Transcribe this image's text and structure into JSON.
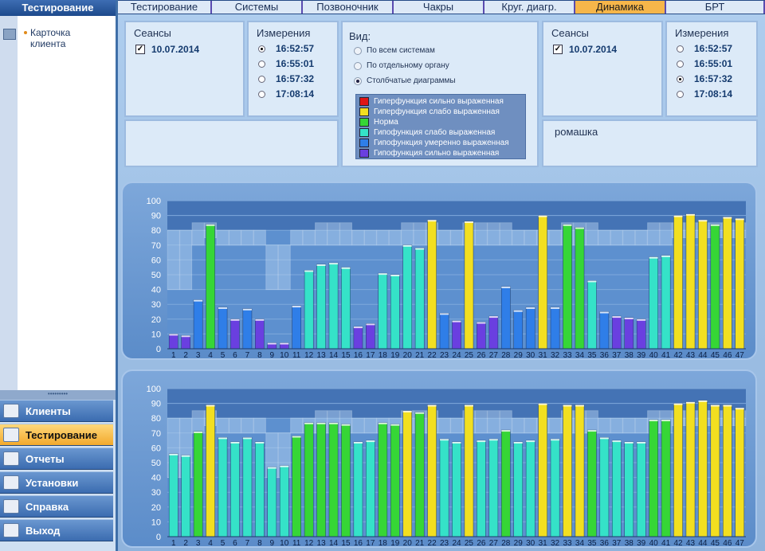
{
  "left": {
    "header": "Тестирование",
    "tree_item": "Карточка клиента",
    "splitter": "•••••••••",
    "nav": [
      {
        "label": "Клиенты",
        "icon": "clients-icon",
        "active": false
      },
      {
        "label": "Тестирование",
        "icon": "testing-icon",
        "active": true
      },
      {
        "label": "Отчеты",
        "icon": "reports-icon",
        "active": false
      },
      {
        "label": "Установки",
        "icon": "settings-icon",
        "active": false
      },
      {
        "label": "Справка",
        "icon": "help-icon",
        "active": false
      },
      {
        "label": "Выход",
        "icon": "exit-icon",
        "active": false
      }
    ]
  },
  "tabs": [
    {
      "label": "Тестирование",
      "active": false
    },
    {
      "label": "Системы",
      "active": false
    },
    {
      "label": "Позвоночник",
      "active": false
    },
    {
      "label": "Чакры",
      "active": false
    },
    {
      "label": "Круг. диагр.",
      "active": false
    },
    {
      "label": "Динамика",
      "active": true
    },
    {
      "label": "БРТ",
      "active": false
    }
  ],
  "left_session": {
    "sessions_title": "Сеансы",
    "session": "10.07.2014",
    "session_checked": true,
    "measure_title": "Измерения",
    "measures": [
      "16:52:57",
      "16:55:01",
      "16:57:32",
      "17:08:14"
    ],
    "selected": 0,
    "note": ""
  },
  "right_session": {
    "sessions_title": "Сеансы",
    "session": "10.07.2014",
    "session_checked": true,
    "measure_title": "Измерения",
    "measures": [
      "16:52:57",
      "16:55:01",
      "16:57:32",
      "17:08:14"
    ],
    "selected": 2,
    "note": "ромашка"
  },
  "view": {
    "title": "Вид:",
    "options": [
      "По всем системам",
      "По отдельному органу",
      "Столбчатые диаграммы"
    ],
    "selected": 2,
    "legend": [
      {
        "label": "Гиперфункция сильно выраженная",
        "color": "#e01515"
      },
      {
        "label": "Гиперфункция слабо выраженная",
        "color": "#f2df20"
      },
      {
        "label": "Норма",
        "color": "#36d636"
      },
      {
        "label": "Гипофункция слабо выраженная",
        "color": "#35e2c8"
      },
      {
        "label": "Гипофункция умеренно выраженная",
        "color": "#2f7ee8"
      },
      {
        "label": "Гипофункция сильно выраженная",
        "color": "#6a3fe0"
      }
    ]
  },
  "chart_data": [
    {
      "type": "bar",
      "ylim": [
        0,
        100
      ],
      "yticks": [
        0,
        10,
        20,
        30,
        40,
        50,
        60,
        70,
        80,
        90,
        100
      ],
      "categories": [
        "1",
        "2",
        "3",
        "4",
        "5",
        "6",
        "7",
        "8",
        "9",
        "10",
        "11",
        "12",
        "13",
        "14",
        "15",
        "16",
        "17",
        "18",
        "19",
        "20",
        "21",
        "22",
        "23",
        "24",
        "25",
        "26",
        "27",
        "28",
        "29",
        "30",
        "31",
        "32",
        "33",
        "34",
        "35",
        "36",
        "37",
        "38",
        "39",
        "40",
        "41",
        "42",
        "43",
        "44",
        "45",
        "46",
        "47"
      ],
      "values": [
        10,
        9,
        33,
        84,
        28,
        20,
        27,
        20,
        4,
        4,
        29,
        53,
        57,
        58,
        55,
        15,
        17,
        51,
        50,
        70,
        68,
        87,
        24,
        19,
        86,
        18,
        22,
        42,
        26,
        28,
        90,
        28,
        84,
        82,
        46,
        25,
        22,
        21,
        20,
        62,
        63,
        90,
        91,
        87,
        84,
        89,
        88
      ],
      "classes": [
        "hs",
        "hs",
        "hm",
        "n",
        "hm",
        "hs",
        "hm",
        "hs",
        "hs",
        "hs",
        "hm",
        "hw",
        "hw",
        "hw",
        "hw",
        "hs",
        "hs",
        "hw",
        "hw",
        "hw",
        "hw",
        "hy",
        "hm",
        "hs",
        "hy",
        "hs",
        "hs",
        "hm",
        "hm",
        "hm",
        "hy",
        "hm",
        "n",
        "n",
        "hw",
        "hm",
        "hs",
        "hs",
        "hs",
        "hw",
        "hw",
        "hy",
        "hy",
        "hy",
        "n",
        "hy",
        "hy"
      ],
      "norm_ranges": [
        [
          40,
          80
        ],
        [
          40,
          80
        ],
        [
          70,
          85
        ],
        [
          75,
          85
        ],
        [
          70,
          80
        ],
        [
          70,
          80
        ],
        [
          70,
          80
        ],
        [
          70,
          80
        ],
        [
          40,
          70
        ],
        [
          40,
          70
        ],
        [
          70,
          80
        ],
        [
          70,
          80
        ],
        [
          70,
          85
        ],
        [
          70,
          85
        ],
        [
          70,
          85
        ],
        [
          70,
          80
        ],
        [
          70,
          80
        ],
        [
          70,
          80
        ],
        [
          70,
          80
        ],
        [
          70,
          85
        ],
        [
          70,
          85
        ],
        [
          70,
          85
        ],
        [
          70,
          80
        ],
        [
          70,
          80
        ],
        [
          70,
          85
        ],
        [
          70,
          85
        ],
        [
          70,
          85
        ],
        [
          70,
          85
        ],
        [
          70,
          80
        ],
        [
          70,
          80
        ],
        [
          70,
          80
        ],
        [
          70,
          80
        ],
        [
          70,
          85
        ],
        [
          70,
          85
        ],
        [
          70,
          85
        ],
        [
          70,
          80
        ],
        [
          70,
          80
        ],
        [
          70,
          80
        ],
        [
          70,
          80
        ],
        [
          70,
          85
        ],
        [
          70,
          85
        ],
        [
          75,
          85
        ],
        [
          75,
          85
        ],
        [
          75,
          85
        ],
        [
          75,
          85
        ],
        [
          75,
          85
        ],
        [
          75,
          85
        ]
      ]
    },
    {
      "type": "bar",
      "ylim": [
        0,
        100
      ],
      "yticks": [
        0,
        10,
        20,
        30,
        40,
        50,
        60,
        70,
        80,
        90,
        100
      ],
      "categories": [
        "1",
        "2",
        "3",
        "4",
        "5",
        "6",
        "7",
        "8",
        "9",
        "10",
        "11",
        "12",
        "13",
        "14",
        "15",
        "16",
        "17",
        "18",
        "19",
        "20",
        "21",
        "22",
        "23",
        "24",
        "25",
        "26",
        "27",
        "28",
        "29",
        "30",
        "31",
        "32",
        "33",
        "34",
        "35",
        "36",
        "37",
        "38",
        "39",
        "40",
        "41",
        "42",
        "43",
        "44",
        "45",
        "46",
        "47"
      ],
      "values": [
        56,
        55,
        71,
        89,
        67,
        64,
        67,
        64,
        47,
        48,
        68,
        77,
        77,
        77,
        76,
        64,
        65,
        77,
        76,
        85,
        84,
        89,
        66,
        64,
        89,
        65,
        66,
        72,
        64,
        65,
        90,
        66,
        89,
        89,
        72,
        67,
        65,
        64,
        64,
        79,
        79,
        90,
        91,
        92,
        89,
        89,
        87
      ],
      "classes": [
        "hw",
        "hw",
        "n",
        "hy",
        "hw",
        "hw",
        "hw",
        "hw",
        "hw",
        "hw",
        "n",
        "n",
        "n",
        "n",
        "n",
        "hw",
        "hw",
        "n",
        "n",
        "hy",
        "n",
        "hy",
        "hw",
        "hw",
        "hy",
        "hw",
        "hw",
        "n",
        "hw",
        "hw",
        "hy",
        "hw",
        "hy",
        "hy",
        "n",
        "hw",
        "hw",
        "hw",
        "hw",
        "n",
        "n",
        "hy",
        "hy",
        "hy",
        "hy",
        "hy",
        "hy"
      ],
      "norm_ranges": [
        [
          40,
          80
        ],
        [
          40,
          80
        ],
        [
          70,
          85
        ],
        [
          75,
          85
        ],
        [
          70,
          80
        ],
        [
          70,
          80
        ],
        [
          70,
          80
        ],
        [
          70,
          80
        ],
        [
          40,
          70
        ],
        [
          40,
          70
        ],
        [
          70,
          80
        ],
        [
          70,
          80
        ],
        [
          70,
          85
        ],
        [
          70,
          85
        ],
        [
          70,
          85
        ],
        [
          70,
          80
        ],
        [
          70,
          80
        ],
        [
          70,
          80
        ],
        [
          70,
          80
        ],
        [
          70,
          85
        ],
        [
          70,
          85
        ],
        [
          70,
          85
        ],
        [
          70,
          80
        ],
        [
          70,
          80
        ],
        [
          70,
          85
        ],
        [
          70,
          85
        ],
        [
          70,
          85
        ],
        [
          70,
          85
        ],
        [
          70,
          80
        ],
        [
          70,
          80
        ],
        [
          70,
          80
        ],
        [
          70,
          80
        ],
        [
          70,
          85
        ],
        [
          70,
          85
        ],
        [
          70,
          85
        ],
        [
          70,
          80
        ],
        [
          70,
          80
        ],
        [
          70,
          80
        ],
        [
          70,
          80
        ],
        [
          70,
          85
        ],
        [
          70,
          85
        ],
        [
          75,
          85
        ],
        [
          75,
          85
        ],
        [
          75,
          85
        ],
        [
          75,
          85
        ],
        [
          75,
          85
        ],
        [
          75,
          85
        ]
      ]
    }
  ]
}
